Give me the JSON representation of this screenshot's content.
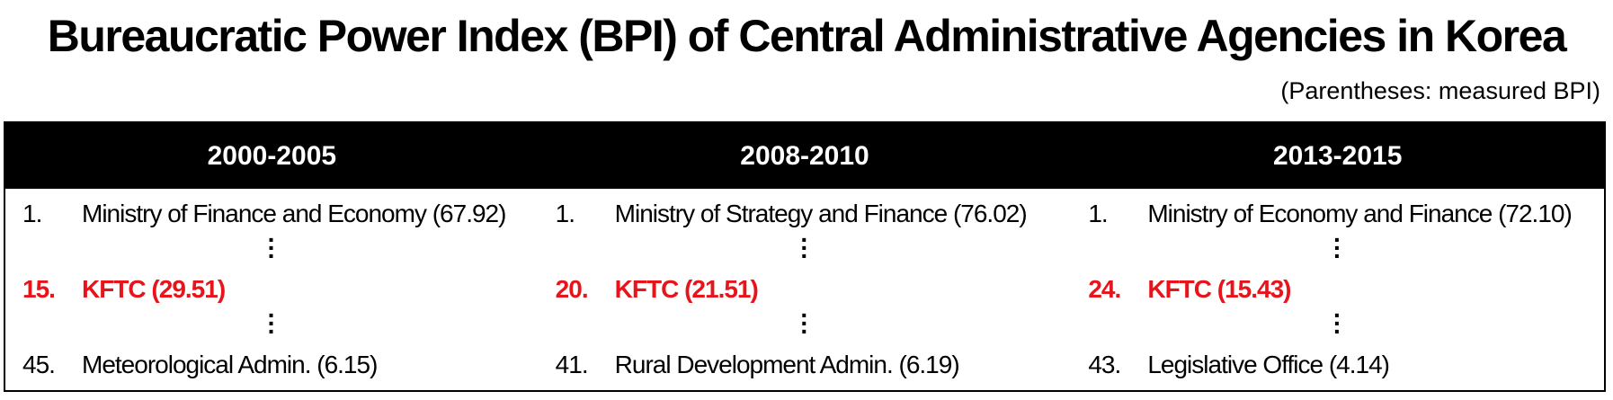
{
  "title": "Bureaucratic Power Index (BPI) of Central Administrative Agencies in Korea",
  "note": "(Parentheses: measured BPI)",
  "colors": {
    "highlight": "#e8141b",
    "header_bg": "#000000"
  },
  "columns": [
    {
      "header": "2000-2005",
      "top": {
        "rank": "1.",
        "label": "Ministry of Finance and Economy (67.92)"
      },
      "kftc": {
        "rank": "15.",
        "label": "KFTC (29.51)"
      },
      "bottom": {
        "rank": "45.",
        "label": "Meteorological Admin. (6.15)"
      }
    },
    {
      "header": "2008-2010",
      "top": {
        "rank": "1.",
        "label": "Ministry of Strategy and Finance (76.02)"
      },
      "kftc": {
        "rank": "20.",
        "label": "KFTC (21.51)"
      },
      "bottom": {
        "rank": "41.",
        "label": "Rural Development Admin. (6.19)"
      }
    },
    {
      "header": "2013-2015",
      "top": {
        "rank": "1.",
        "label": "Ministry of Economy and Finance (72.10)"
      },
      "kftc": {
        "rank": "24.",
        "label": "KFTC (15.43)"
      },
      "bottom": {
        "rank": "43.",
        "label": "Legislative Office (4.14)"
      }
    }
  ]
}
